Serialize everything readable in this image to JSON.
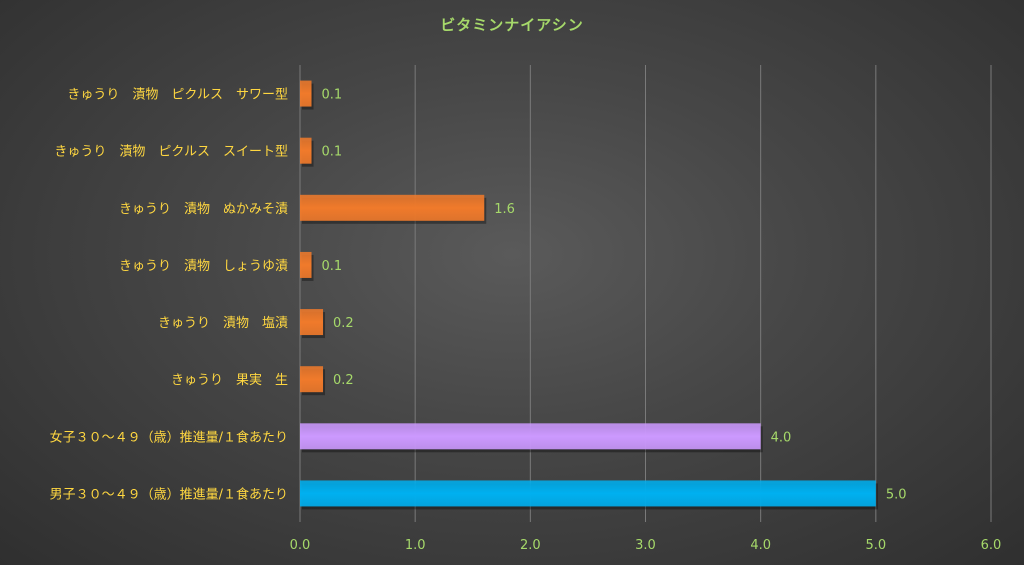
{
  "chart_data": {
    "type": "bar",
    "orientation": "horizontal",
    "title": "ビタミンナイアシン",
    "xlabel": "",
    "ylabel": "",
    "xlim": [
      0,
      6
    ],
    "x_ticks": [
      "0.0",
      "1.0",
      "2.0",
      "3.0",
      "4.0",
      "5.0",
      "6.0"
    ],
    "grid": "vertical",
    "legend": "none",
    "categories": [
      "きゅうり　漬物　ピクルス　サワー型",
      "きゅうり　漬物　ピクルス　スイート型",
      "きゅうり　漬物　ぬかみそ漬",
      "きゅうり　漬物　しょうゆ漬",
      "きゅうり　漬物　塩漬",
      "きゅうり　果実　生",
      "女子３０～４９（歳）推進量/１食あたり",
      "男子３０～４９（歳）推進量/１食あたり"
    ],
    "values": [
      0.1,
      0.1,
      1.6,
      0.1,
      0.2,
      0.2,
      4.0,
      5.0
    ],
    "value_labels": [
      "0.1",
      "0.1",
      "1.6",
      "0.1",
      "0.2",
      "0.2",
      "4.0",
      "5.0"
    ],
    "bar_colors": [
      "#f07a2b",
      "#f07a2b",
      "#f07a2b",
      "#f07a2b",
      "#f07a2b",
      "#f07a2b",
      "#cc99ff",
      "#00b0f0"
    ],
    "colors": {
      "title": "#a6d96a",
      "category_label": "#ffd740",
      "value_label": "#a6d96a",
      "tick_label": "#a6d96a",
      "gridline": "#7a7a7a"
    }
  }
}
